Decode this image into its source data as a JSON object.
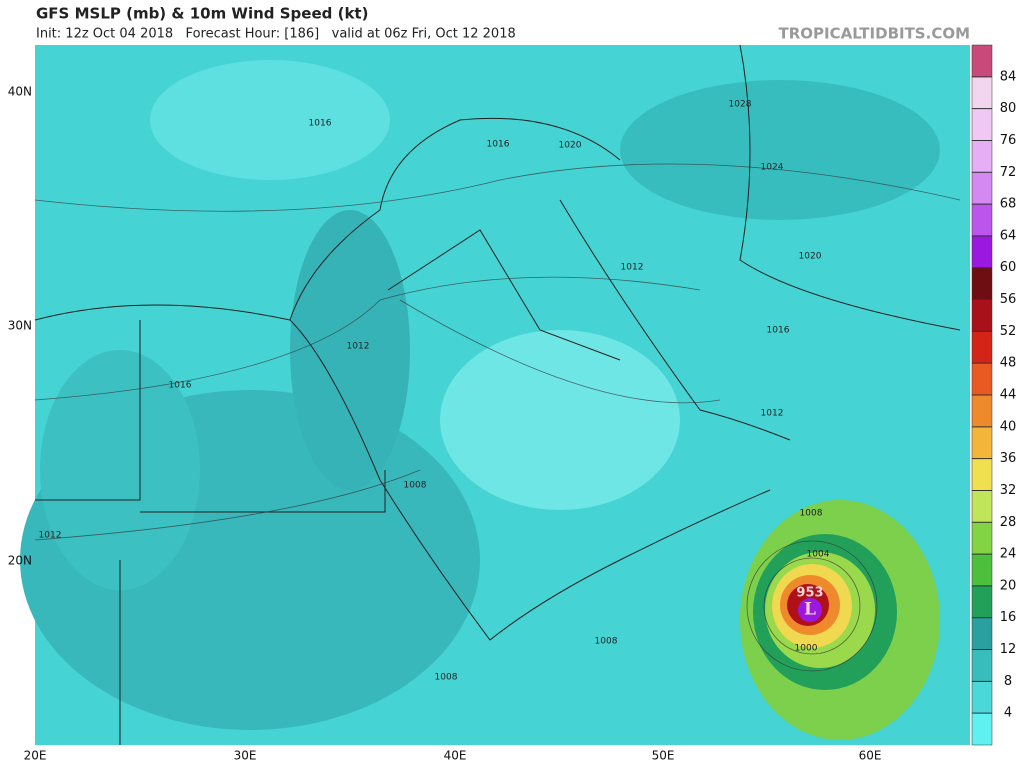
{
  "header": {
    "title": "GFS MSLP (mb) & 10m Wind Speed (kt)",
    "subtitle": "Init: 12z Oct 04 2018   Forecast Hour: [186]   valid at 06z Fri, Oct 12 2018",
    "watermark": "TROPICALTIDBITS.COM"
  },
  "map": {
    "lat_labels": [
      "40N",
      "30N",
      "20N"
    ],
    "lon_labels": [
      "20E",
      "30E",
      "40E",
      "50E",
      "60E"
    ],
    "isobar_labels": [
      1016,
      1016,
      1020,
      1028,
      1024,
      1012,
      1020,
      1016,
      1012,
      1016,
      1012,
      1008,
      1012,
      1008,
      1004,
      1008,
      1008,
      1000
    ],
    "low_pressure": "953",
    "low_marker": "L"
  },
  "colorbar": {
    "ticks": [
      4,
      8,
      12,
      16,
      20,
      24,
      28,
      32,
      36,
      40,
      44,
      48,
      52,
      56,
      60,
      64,
      68,
      72,
      76,
      80,
      84
    ],
    "colors": [
      "#5ff0f0",
      "#4ad8d8",
      "#38bcbc",
      "#2aa0a0",
      "#21a05a",
      "#4cbf3c",
      "#82d444",
      "#c0e45a",
      "#f0e050",
      "#f3b63a",
      "#ef8a2c",
      "#e85a22",
      "#d42418",
      "#a8101a",
      "#6e0d12",
      "#9a18e0",
      "#bb55ec",
      "#d388f2",
      "#e5aef5",
      "#efc8f3",
      "#f2d5ee",
      "#c84a7a"
    ]
  }
}
